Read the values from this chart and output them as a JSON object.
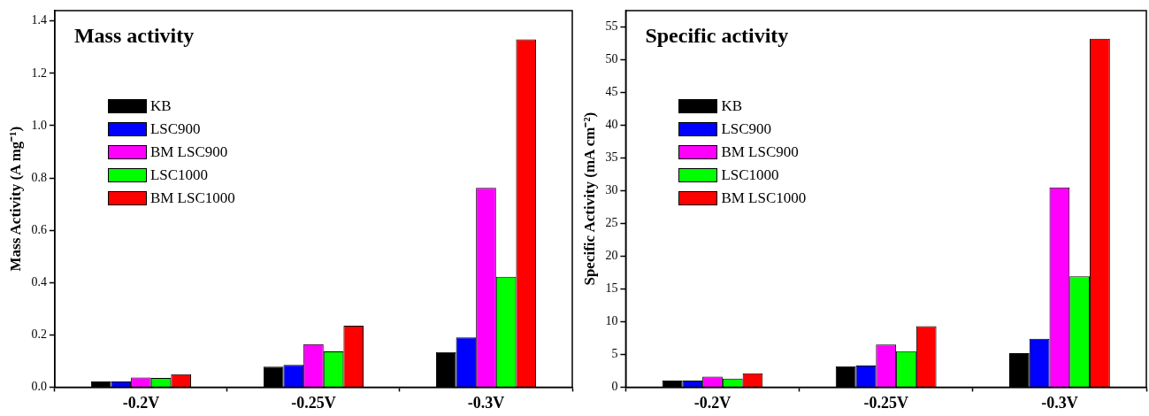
{
  "chart_data": [
    {
      "type": "bar",
      "title": "Mass activity",
      "ylabel": "Mass Activity (A mg⁻¹)",
      "categories": [
        "-0.2V",
        "-0.25V",
        "-0.3V"
      ],
      "series": [
        {
          "name": "KB",
          "color": "#000000",
          "values": [
            0.022,
            0.078,
            0.134
          ]
        },
        {
          "name": "LSC900",
          "color": "#0000ff",
          "values": [
            0.022,
            0.085,
            0.19
          ]
        },
        {
          "name": "BM LSC900",
          "color": "#ff00ff",
          "values": [
            0.037,
            0.165,
            0.762
          ]
        },
        {
          "name": "LSC1000",
          "color": "#00ff00",
          "values": [
            0.035,
            0.137,
            0.422
          ]
        },
        {
          "name": "BM LSC1000",
          "color": "#ff0000",
          "values": [
            0.05,
            0.235,
            1.33
          ]
        }
      ],
      "ylim": [
        0,
        1.44
      ],
      "yticks": [
        {
          "value": 0,
          "label": "0.0"
        },
        0.2,
        0.4,
        0.6,
        0.8,
        {
          "value": 1,
          "label": "1.0"
        },
        1.2,
        1.4
      ],
      "grid": false,
      "legend": "top left"
    },
    {
      "type": "bar",
      "title": "Specific activity",
      "ylabel": "Specific Activity (mA cm⁻²)",
      "categories": [
        "-0.2V",
        "-0.25V",
        "-0.3V"
      ],
      "series": [
        {
          "name": "KB",
          "color": "#000000",
          "values": [
            1.0,
            3.2,
            5.2
          ]
        },
        {
          "name": "LSC900",
          "color": "#0000ff",
          "values": [
            1.0,
            3.3,
            7.4
          ]
        },
        {
          "name": "BM LSC900",
          "color": "#ff00ff",
          "values": [
            1.6,
            6.5,
            30.5
          ]
        },
        {
          "name": "LSC1000",
          "color": "#00ff00",
          "values": [
            1.3,
            5.5,
            16.9
          ]
        },
        {
          "name": "BM LSC1000",
          "color": "#ff0000",
          "values": [
            2.1,
            9.3,
            53.2
          ]
        }
      ],
      "ylim": [
        0,
        57.5
      ],
      "yticks": [
        0,
        5,
        10,
        15,
        20,
        25,
        30,
        35,
        40,
        45,
        50,
        55
      ],
      "grid": false,
      "legend": "top left"
    }
  ]
}
